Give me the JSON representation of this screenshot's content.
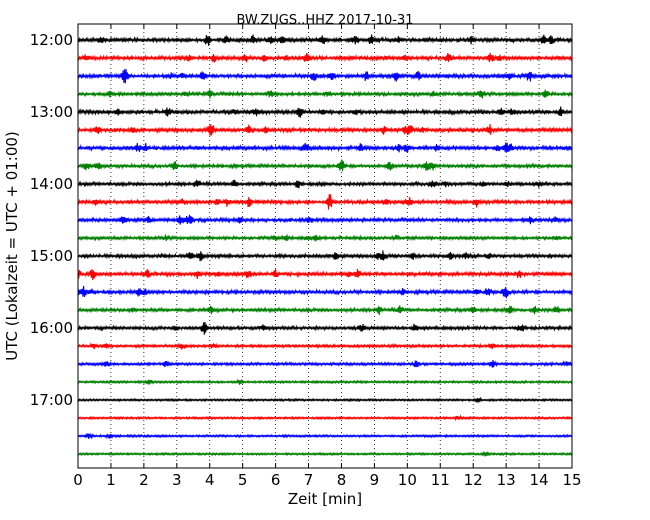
{
  "chart_data": {
    "type": "line",
    "title": "BW.ZUGS..HHZ 2017-10-31",
    "xlabel": "Zeit  [min]",
    "ylabel": "UTC (Lokalzeit = UTC + 01:00)",
    "xlim": [
      0,
      15
    ],
    "x_ticks": [
      0,
      1,
      2,
      3,
      4,
      5,
      6,
      7,
      8,
      9,
      10,
      11,
      12,
      13,
      14,
      15
    ],
    "y_ticks": [
      {
        "label": "12:00",
        "trace_index": 0
      },
      {
        "label": "13:00",
        "trace_index": 4
      },
      {
        "label": "14:00",
        "trace_index": 8
      },
      {
        "label": "15:00",
        "trace_index": 12
      },
      {
        "label": "16:00",
        "trace_index": 16
      },
      {
        "label": "17:00",
        "trace_index": 20
      }
    ],
    "grid": "vertical-dotted",
    "trace_colors": [
      "#000000",
      "#ff0000",
      "#0000ff",
      "#008000"
    ],
    "traces": [
      {
        "start": "12:00",
        "activity": 0.9
      },
      {
        "start": "12:15",
        "activity": 0.8
      },
      {
        "start": "12:30",
        "activity": 0.85
      },
      {
        "start": "12:45",
        "activity": 0.6
      },
      {
        "start": "13:00",
        "activity": 0.8
      },
      {
        "start": "13:15",
        "activity": 0.8
      },
      {
        "start": "13:30",
        "activity": 0.85
      },
      {
        "start": "13:45",
        "activity": 0.6
      },
      {
        "start": "14:00",
        "activity": 0.6
      },
      {
        "start": "14:15",
        "activity": 0.75
      },
      {
        "start": "14:30",
        "activity": 0.65
      },
      {
        "start": "14:45",
        "activity": 0.5
      },
      {
        "start": "15:00",
        "activity": 0.65
      },
      {
        "start": "15:15",
        "activity": 0.7
      },
      {
        "start": "15:30",
        "activity": 0.7
      },
      {
        "start": "15:45",
        "activity": 0.6
      },
      {
        "start": "16:00",
        "activity": 0.6
      },
      {
        "start": "16:15",
        "activity": 0.35
      },
      {
        "start": "16:30",
        "activity": 0.35
      },
      {
        "start": "16:45",
        "activity": 0.15
      },
      {
        "start": "17:00",
        "activity": 0.1
      },
      {
        "start": "17:15",
        "activity": 0.1
      },
      {
        "start": "17:30",
        "activity": 0.12
      },
      {
        "start": "17:45",
        "activity": 0.1
      }
    ]
  }
}
